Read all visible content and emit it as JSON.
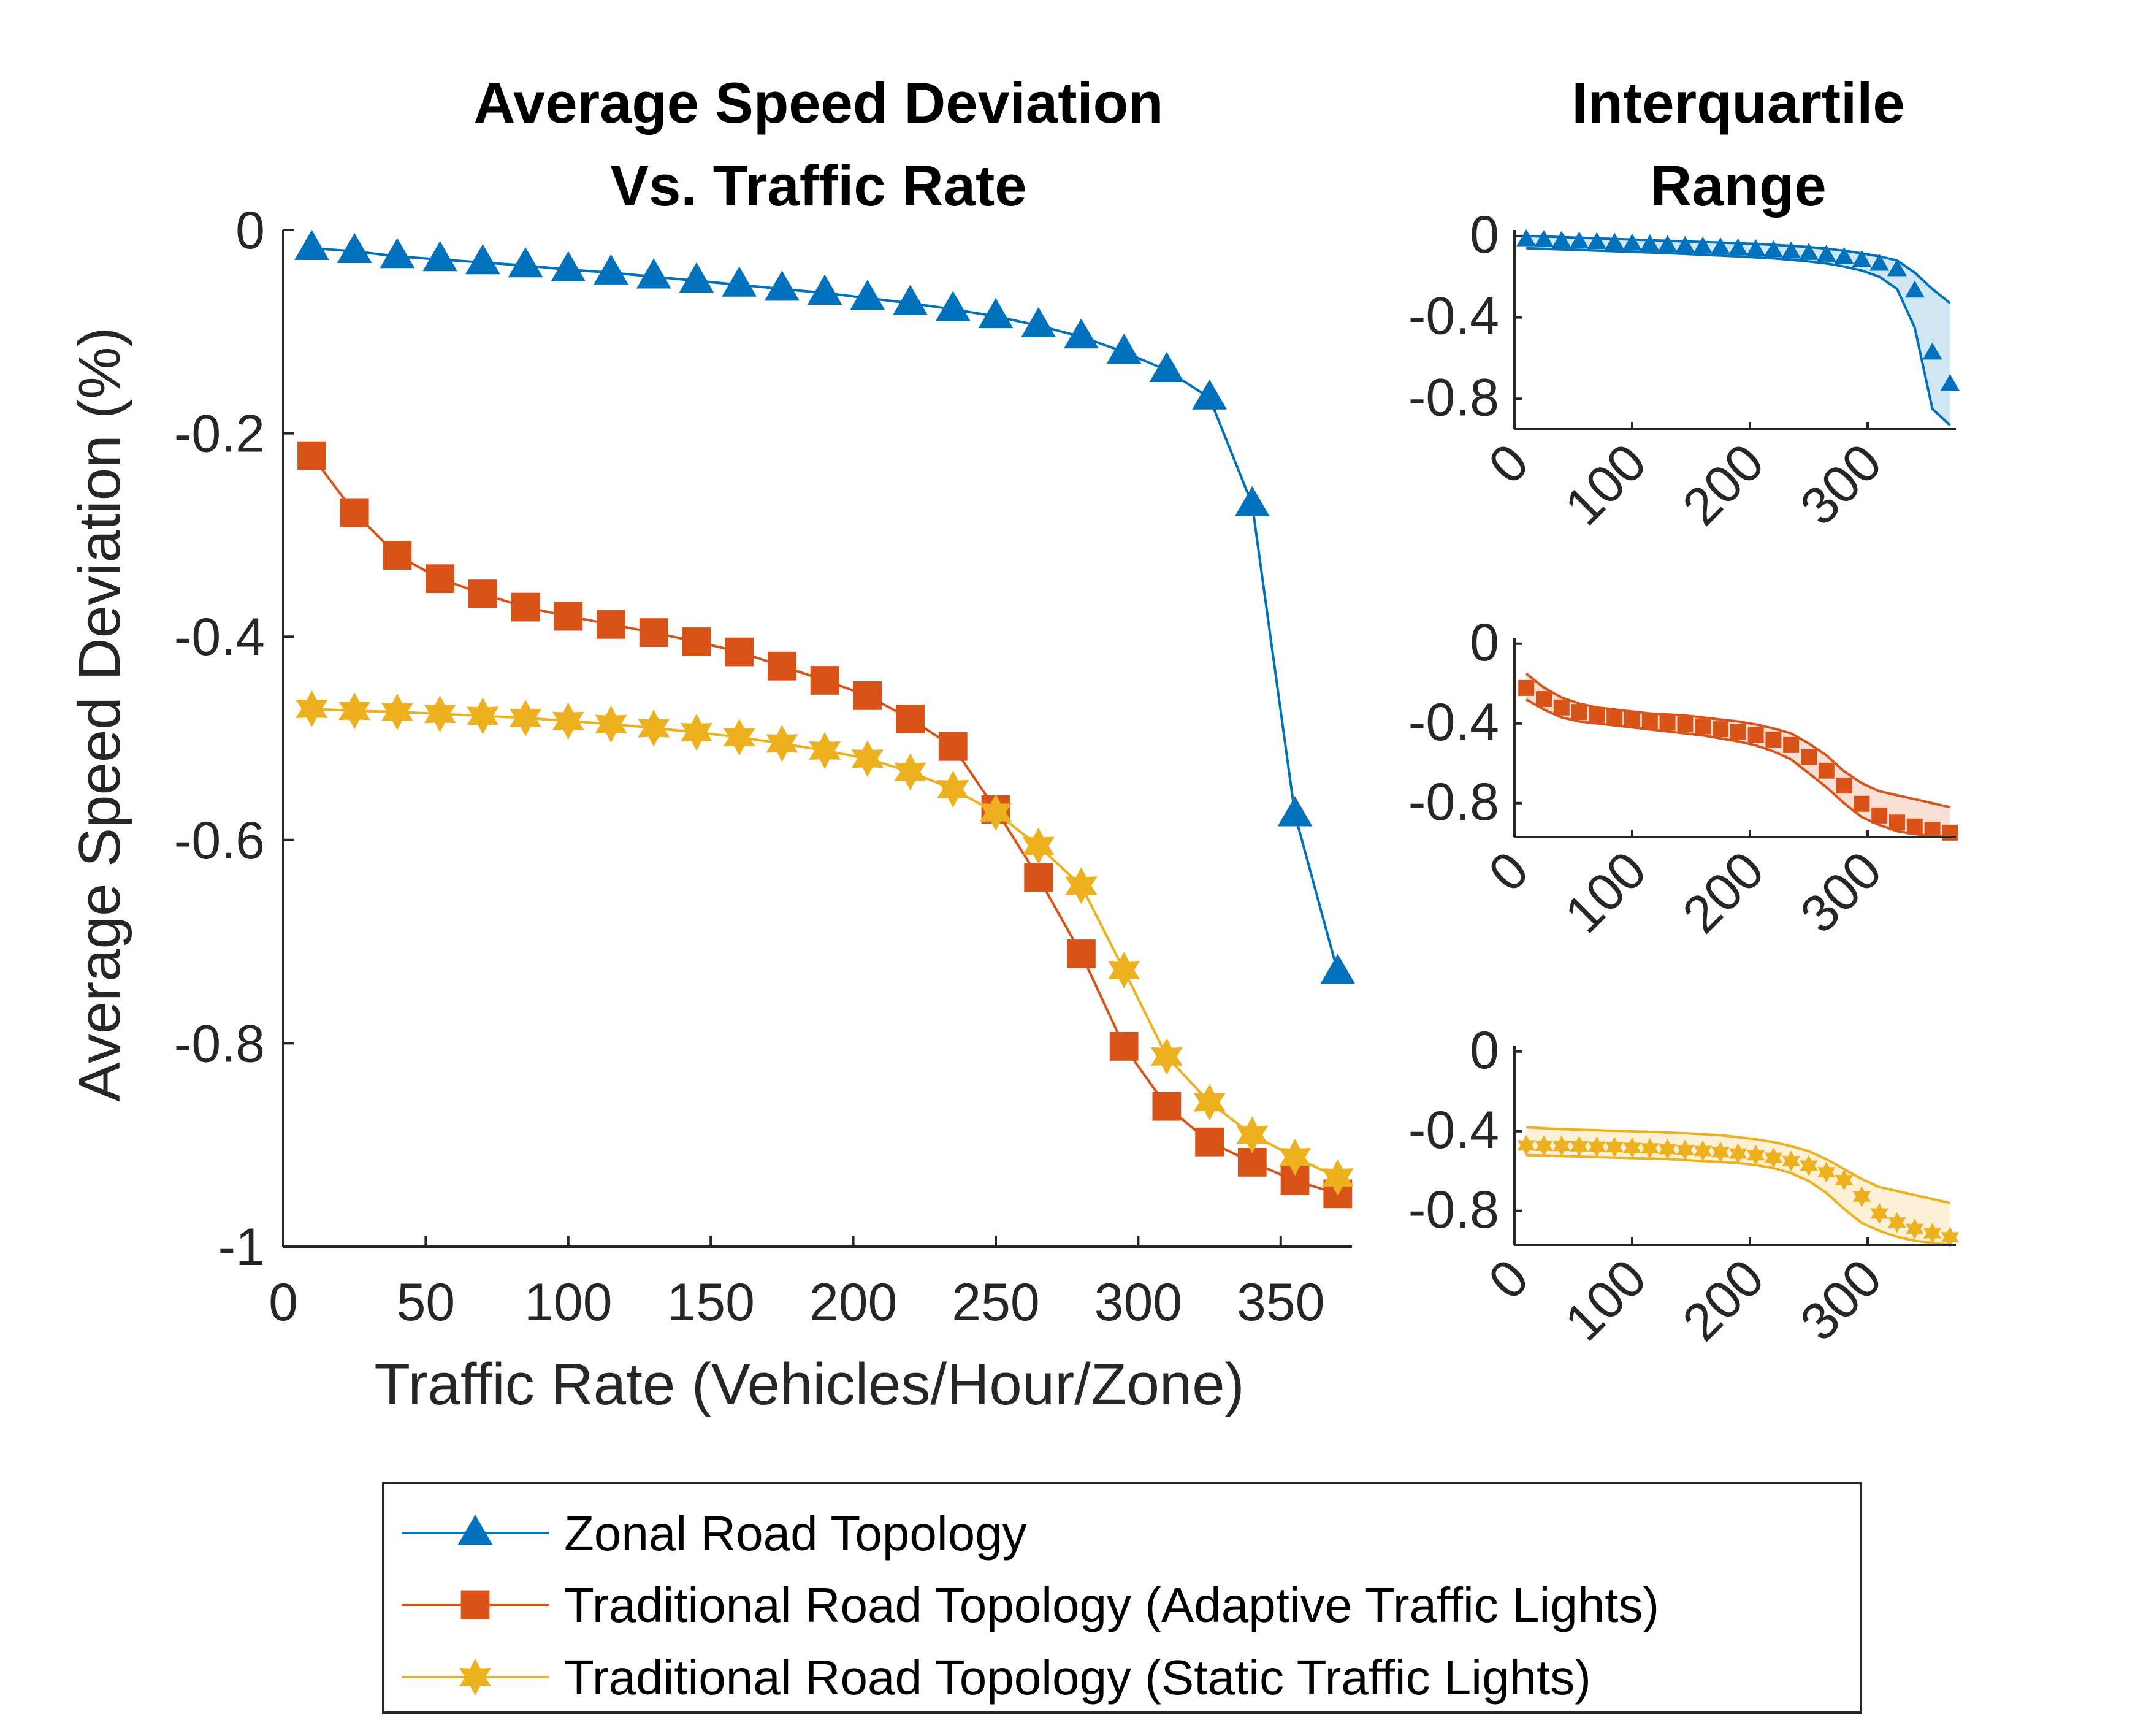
{
  "colors": {
    "zonal": "#0072BD",
    "adaptive": "#D95319",
    "static": "#EDB120",
    "axis": "#262626"
  },
  "chart_data": [
    {
      "type": "line",
      "title": [
        "Average Speed Deviation",
        "Vs. Traffic Rate"
      ],
      "xlabel": "Traffic Rate (Vehicles/Hour/Zone)",
      "ylabel": "Average Speed Deviation (%)",
      "xlim": [
        0,
        375
      ],
      "ylim": [
        -1,
        0
      ],
      "xticks": [
        0,
        50,
        100,
        150,
        200,
        250,
        300,
        350
      ],
      "yticks": [
        0,
        -0.2,
        -0.4,
        -0.6,
        -0.8,
        -1
      ],
      "xtick_labels": [
        "0",
        "50",
        "100",
        "150",
        "200",
        "250",
        "300",
        "350"
      ],
      "ytick_labels": [
        "0",
        "-0.2",
        "-0.4",
        "-0.6",
        "-0.8",
        "-1"
      ],
      "x": [
        10,
        25,
        40,
        55,
        70,
        85,
        100,
        115,
        130,
        145,
        160,
        175,
        190,
        205,
        220,
        235,
        250,
        265,
        280,
        295,
        310,
        325,
        340,
        355,
        370
      ],
      "series": [
        {
          "name": "Zonal Road Topology",
          "key": "zonal",
          "marker": "triangle",
          "values": [
            -0.018,
            -0.021,
            -0.026,
            -0.029,
            -0.032,
            -0.035,
            -0.039,
            -0.042,
            -0.046,
            -0.05,
            -0.054,
            -0.058,
            -0.062,
            -0.067,
            -0.072,
            -0.078,
            -0.085,
            -0.094,
            -0.105,
            -0.12,
            -0.138,
            -0.165,
            -0.27,
            -0.575,
            -0.73
          ]
        },
        {
          "name": "Traditional Road Topology (Adaptive Traffic Lights)",
          "key": "adaptive",
          "marker": "square",
          "values": [
            -0.222,
            -0.278,
            -0.32,
            -0.343,
            -0.358,
            -0.371,
            -0.38,
            -0.388,
            -0.396,
            -0.405,
            -0.415,
            -0.429,
            -0.443,
            -0.458,
            -0.481,
            -0.508,
            -0.57,
            -0.637,
            -0.712,
            -0.803,
            -0.862,
            -0.897,
            -0.917,
            -0.935,
            -0.948
          ]
        },
        {
          "name": "Traditional Road Topology (Static Traffic Lights)",
          "key": "static",
          "marker": "star",
          "values": [
            -0.471,
            -0.473,
            -0.474,
            -0.476,
            -0.478,
            -0.48,
            -0.483,
            -0.486,
            -0.49,
            -0.494,
            -0.499,
            -0.505,
            -0.512,
            -0.52,
            -0.533,
            -0.55,
            -0.573,
            -0.606,
            -0.645,
            -0.728,
            -0.813,
            -0.858,
            -0.89,
            -0.912,
            -0.932
          ]
        }
      ],
      "legend": "bottom-center"
    },
    {
      "type": "line",
      "title": [
        "Interquartile",
        "Range"
      ],
      "panels": [
        {
          "series_key": "zonal",
          "xlim": [
            0,
            375
          ],
          "ylim": [
            -0.95,
            0.03
          ],
          "yticks": [
            0,
            -0.4,
            -0.8
          ],
          "ytick_labels": [
            "0",
            "-0.4",
            "-0.8"
          ],
          "xticks": [
            0,
            100,
            200,
            300
          ],
          "xtick_labels": [
            "0",
            "100",
            "200",
            "300"
          ],
          "upper": [
            0.0,
            -0.002,
            -0.005,
            -0.008,
            -0.011,
            -0.014,
            -0.017,
            -0.02,
            -0.023,
            -0.026,
            -0.029,
            -0.032,
            -0.035,
            -0.039,
            -0.043,
            -0.048,
            -0.054,
            -0.062,
            -0.072,
            -0.085,
            -0.1,
            -0.12,
            -0.18,
            -0.26,
            -0.33
          ],
          "lower": [
            -0.06,
            -0.063,
            -0.066,
            -0.069,
            -0.072,
            -0.075,
            -0.078,
            -0.081,
            -0.084,
            -0.088,
            -0.092,
            -0.096,
            -0.1,
            -0.105,
            -0.11,
            -0.117,
            -0.125,
            -0.135,
            -0.15,
            -0.17,
            -0.2,
            -0.26,
            -0.45,
            -0.85,
            -0.93
          ]
        },
        {
          "series_key": "adaptive",
          "xlim": [
            0,
            375
          ],
          "ylim": [
            -0.97,
            0.03
          ],
          "yticks": [
            0,
            -0.4,
            -0.8
          ],
          "ytick_labels": [
            "0",
            "-0.4",
            "-0.8"
          ],
          "xticks": [
            0,
            100,
            200,
            300
          ],
          "xtick_labels": [
            "0",
            "100",
            "200",
            "300"
          ],
          "upper": [
            -0.15,
            -0.22,
            -0.27,
            -0.3,
            -0.32,
            -0.33,
            -0.34,
            -0.35,
            -0.355,
            -0.36,
            -0.37,
            -0.38,
            -0.39,
            -0.405,
            -0.425,
            -0.45,
            -0.5,
            -0.56,
            -0.64,
            -0.7,
            -0.74,
            -0.76,
            -0.78,
            -0.8,
            -0.82
          ],
          "lower": [
            -0.28,
            -0.33,
            -0.37,
            -0.39,
            -0.4,
            -0.41,
            -0.42,
            -0.43,
            -0.44,
            -0.45,
            -0.46,
            -0.475,
            -0.49,
            -0.51,
            -0.54,
            -0.58,
            -0.65,
            -0.72,
            -0.8,
            -0.87,
            -0.91,
            -0.94,
            -0.955,
            -0.965,
            -0.97
          ]
        },
        {
          "series_key": "static",
          "xlim": [
            0,
            375
          ],
          "ylim": [
            -0.97,
            0.03
          ],
          "yticks": [
            0,
            -0.4,
            -0.8
          ],
          "ytick_labels": [
            "0",
            "-0.4",
            "-0.8"
          ],
          "xticks": [
            0,
            100,
            200,
            300
          ],
          "xtick_labels": [
            "0",
            "100",
            "200",
            "300"
          ],
          "upper": [
            -0.38,
            -0.385,
            -0.39,
            -0.392,
            -0.395,
            -0.398,
            -0.4,
            -0.403,
            -0.407,
            -0.41,
            -0.415,
            -0.42,
            -0.43,
            -0.44,
            -0.455,
            -0.475,
            -0.5,
            -0.54,
            -0.59,
            -0.64,
            -0.68,
            -0.7,
            -0.72,
            -0.74,
            -0.76
          ],
          "lower": [
            -0.52,
            -0.522,
            -0.525,
            -0.527,
            -0.53,
            -0.532,
            -0.535,
            -0.537,
            -0.54,
            -0.545,
            -0.55,
            -0.555,
            -0.56,
            -0.57,
            -0.585,
            -0.61,
            -0.65,
            -0.71,
            -0.79,
            -0.86,
            -0.9,
            -0.93,
            -0.95,
            -0.96,
            -0.97
          ]
        }
      ]
    }
  ]
}
